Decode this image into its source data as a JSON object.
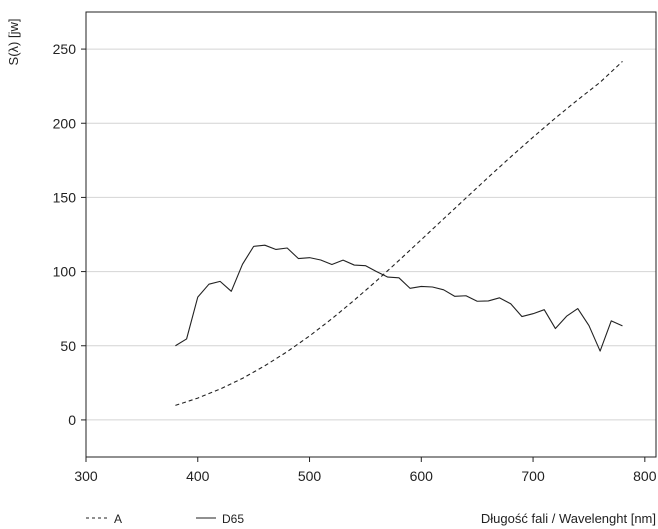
{
  "chart_data": {
    "type": "line",
    "title": "",
    "xlabel": "Długość fali / Wavelenght [nm]",
    "ylabel": "S(λ) [jw]",
    "xlim": [
      300,
      810
    ],
    "ylim": [
      -25,
      275
    ],
    "x_ticks": [
      300,
      400,
      500,
      600,
      700,
      800
    ],
    "y_ticks": [
      0,
      50,
      100,
      150,
      200,
      250
    ],
    "grid": "horizontal",
    "legend": "bottom-left",
    "series": [
      {
        "name": "A",
        "style": "dashed",
        "color": "#222222",
        "x": [
          380,
          400,
          420,
          440,
          460,
          480,
          500,
          520,
          540,
          560,
          580,
          600,
          620,
          640,
          660,
          680,
          700,
          720,
          740,
          760,
          780
        ],
        "values": [
          9.8,
          14.7,
          20.8,
          28.0,
          36.5,
          46.0,
          56.6,
          68.2,
          80.7,
          93.8,
          107.5,
          121.5,
          135.6,
          149.6,
          163.6,
          177.3,
          190.6,
          203.5,
          215.8,
          227.6,
          241.7
        ]
      },
      {
        "name": "D65",
        "style": "solid",
        "color": "#222222",
        "x": [
          380,
          390,
          400,
          410,
          420,
          430,
          440,
          450,
          460,
          470,
          480,
          490,
          500,
          510,
          520,
          530,
          540,
          550,
          560,
          570,
          580,
          590,
          600,
          610,
          620,
          630,
          640,
          650,
          660,
          670,
          680,
          690,
          700,
          710,
          720,
          730,
          740,
          750,
          760,
          770,
          780
        ],
        "values": [
          50.0,
          54.6,
          82.8,
          91.5,
          93.4,
          86.7,
          104.9,
          117.0,
          117.8,
          114.9,
          115.9,
          108.8,
          109.4,
          107.8,
          104.8,
          107.7,
          104.4,
          104.0,
          100.0,
          96.3,
          95.8,
          88.7,
          90.0,
          89.6,
          87.7,
          83.3,
          83.7,
          80.0,
          80.2,
          82.3,
          78.3,
          69.7,
          71.6,
          74.3,
          61.6,
          69.9,
          75.1,
          63.6,
          46.4,
          66.8,
          63.4
        ]
      }
    ]
  }
}
